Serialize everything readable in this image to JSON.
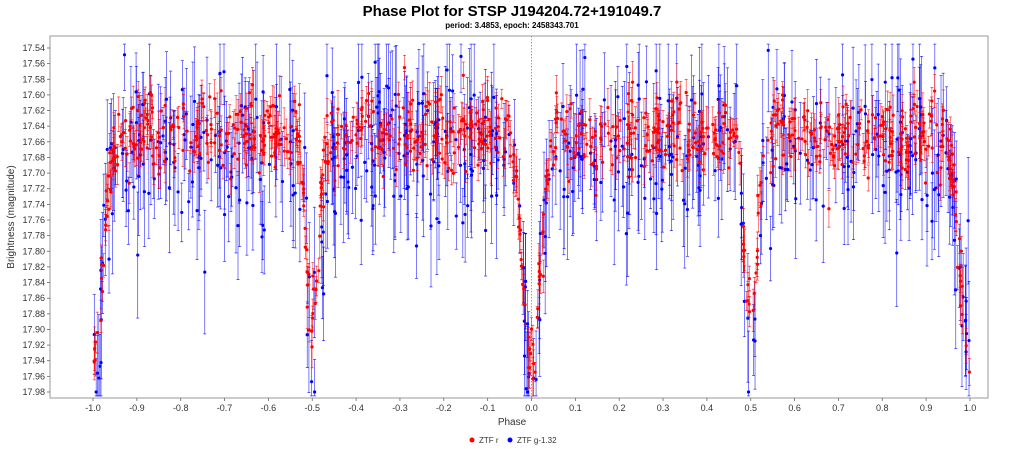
{
  "chart_data": {
    "type": "scatter",
    "title": "Phase Plot for STSP J194204.72+191049.7",
    "subtitle": "period: 3.4853, epoch: 2458343.701",
    "xlabel": "Phase",
    "ylabel": "Brightness (magnitude)",
    "xlim": [
      -1.1,
      1.1
    ],
    "ylim": [
      17.53,
      17.99
    ],
    "y_inverted": true,
    "x_ticks": [
      "-1.0",
      "-0.9",
      "-0.8",
      "-0.7",
      "-0.6",
      "-0.5",
      "-0.4",
      "-0.3",
      "-0.2",
      "-0.1",
      "0.0",
      "0.1",
      "0.2",
      "0.3",
      "0.4",
      "0.5",
      "0.6",
      "0.7",
      "0.8",
      "0.9",
      "1.0"
    ],
    "y_ticks": [
      "17.54",
      "17.56",
      "17.58",
      "17.60",
      "17.62",
      "17.64",
      "17.66",
      "17.68",
      "17.70",
      "17.72",
      "17.74",
      "17.76",
      "17.78",
      "17.80",
      "17.82",
      "17.84",
      "17.86",
      "17.88",
      "17.90",
      "17.92",
      "17.94",
      "17.96",
      "17.98"
    ],
    "grid": false,
    "reference_line_x": 0.0,
    "legend_position": "bottom-center",
    "series": [
      {
        "name": "ZTF r",
        "color": "#ff0000",
        "error_bars": true,
        "light_curve": {
          "out_of_eclipse_mag": 17.65,
          "primary_eclipse": {
            "phase": 0.0,
            "depth_mag": 17.95,
            "half_width": 0.03
          },
          "secondary_eclipse": {
            "phase": 0.5,
            "depth_mag": 17.88,
            "half_width": 0.022
          },
          "typical_error": 0.02,
          "scatter": 0.025
        }
      },
      {
        "name": "ZTF g-1.32",
        "color": "#0000ff",
        "error_bars": true,
        "light_curve": {
          "out_of_eclipse_mag": 17.67,
          "primary_eclipse": {
            "phase": 0.0,
            "depth_mag": 17.95,
            "half_width": 0.03
          },
          "secondary_eclipse": {
            "phase": 0.5,
            "depth_mag": 17.92,
            "half_width": 0.022
          },
          "typical_error": 0.06,
          "scatter": 0.05
        }
      }
    ]
  }
}
